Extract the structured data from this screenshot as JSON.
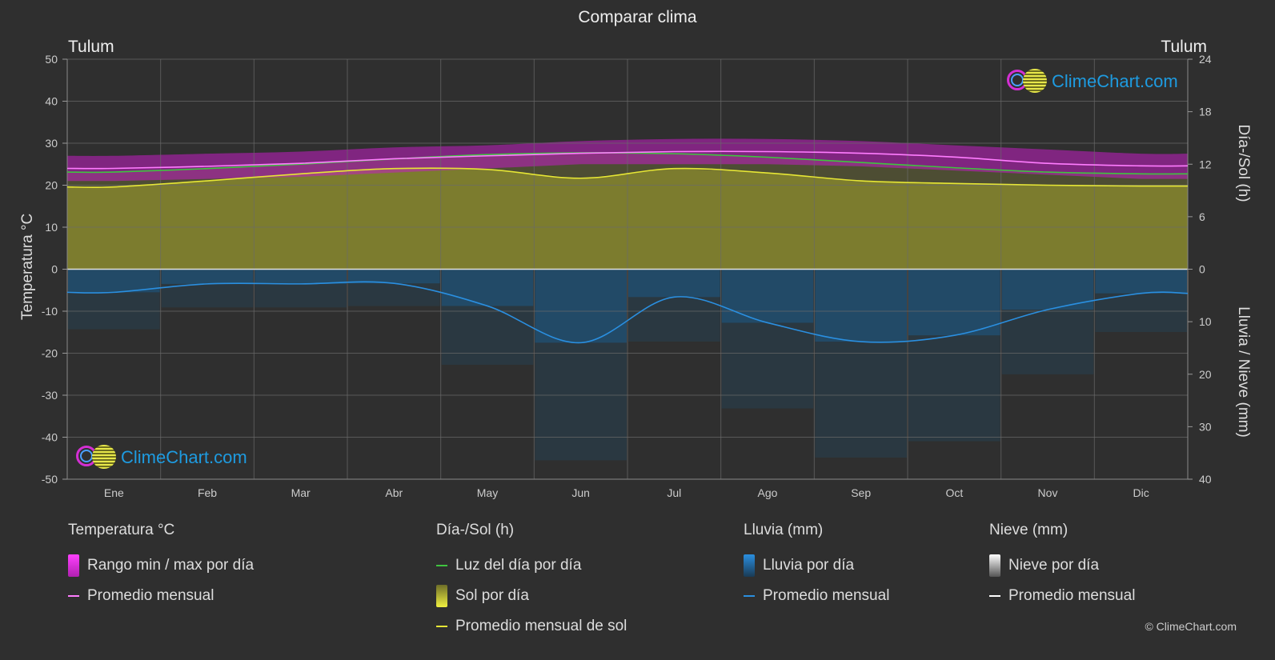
{
  "header": {
    "title": "Comparar clima",
    "location_left": "Tulum",
    "location_right": "Tulum"
  },
  "axes": {
    "left_title": "Temperatura °C",
    "right_top_title": "Día-/Sol (h)",
    "right_bottom_title": "Lluvia / Nieve (mm)"
  },
  "logo_text": "ClimeChart.com",
  "copyright": "© ClimeChart.com",
  "colors": {
    "background": "#2f2f2f",
    "temp_range": "#c21ec2",
    "temp_avg": "#ff7cff",
    "daylight": "#3fc43f",
    "sunshine_fill": "#8a8a2e",
    "sunshine_avg": "#e6e635",
    "rain_fill": "#1d5a86",
    "rain_avg": "#2a8fe0",
    "snow_avg": "#ffffff",
    "brand": "#1e9be0"
  },
  "legend": {
    "temperature": {
      "heading": "Temperatura °C",
      "range": "Rango min / max por día",
      "avg": "Promedio mensual"
    },
    "sun": {
      "heading": "Día-/Sol (h)",
      "daylight": "Luz del día por día",
      "sunshine": "Sol por día",
      "avg": "Promedio mensual de sol"
    },
    "rain": {
      "heading": "Lluvia (mm)",
      "daily": "Lluvia por día",
      "avg": "Promedio mensual"
    },
    "snow": {
      "heading": "Nieve (mm)",
      "daily": "Nieve por día",
      "avg": "Promedio mensual"
    }
  },
  "chart_data": {
    "type": "area",
    "title": "Comparar clima",
    "categories": [
      "Ene",
      "Feb",
      "Mar",
      "Abr",
      "May",
      "Jun",
      "Jul",
      "Ago",
      "Sep",
      "Oct",
      "Nov",
      "Dic"
    ],
    "y_left": {
      "label": "Temperatura °C",
      "range": [
        -50,
        50
      ],
      "ticks": [
        50,
        40,
        30,
        20,
        10,
        0,
        -10,
        -20,
        -30,
        -40,
        -50
      ]
    },
    "y_right_top": {
      "label": "Día-/Sol (h)",
      "range": [
        0,
        24
      ],
      "ticks": [
        24,
        18,
        12,
        6,
        0
      ]
    },
    "y_right_bottom": {
      "label": "Lluvia / Nieve (mm)",
      "range": [
        0,
        40
      ],
      "ticks": [
        0,
        10,
        20,
        30,
        40
      ]
    },
    "grid": true,
    "series": [
      {
        "name": "Rango min / max por día",
        "kind": "band",
        "axis": "temp",
        "low": [
          21,
          21.5,
          22,
          23,
          24,
          25,
          25,
          25,
          24.5,
          23.5,
          22.5,
          21.5
        ],
        "high": [
          27,
          27.5,
          28,
          29,
          29.5,
          30.5,
          31,
          31,
          30.5,
          29.5,
          28.5,
          27.5
        ]
      },
      {
        "name": "Promedio mensual",
        "kind": "line",
        "axis": "temp",
        "values": [
          24,
          24.5,
          25.2,
          26.3,
          27,
          27.6,
          28,
          28,
          27.6,
          26.7,
          25.2,
          24.6
        ]
      },
      {
        "name": "Luz del día por día",
        "kind": "line",
        "axis": "sun",
        "values": [
          11.1,
          11.5,
          12.0,
          12.6,
          13.1,
          13.3,
          13.2,
          12.8,
          12.2,
          11.6,
          11.1,
          10.9
        ]
      },
      {
        "name": "Sol por día",
        "kind": "area",
        "axis": "sun",
        "values": [
          9.4,
          10.1,
          10.9,
          11.5,
          11.4,
          10.4,
          11.5,
          11.0,
          10.1,
          9.8,
          9.6,
          9.5
        ]
      },
      {
        "name": "Promedio mensual de sol",
        "kind": "line",
        "axis": "sun",
        "values": [
          9.4,
          10.1,
          10.9,
          11.5,
          11.4,
          10.4,
          11.5,
          11.0,
          10.1,
          9.8,
          9.6,
          9.5
        ]
      },
      {
        "name": "Lluvia por día",
        "kind": "bars",
        "axis": "rain",
        "values": [
          4.4,
          2.8,
          2.8,
          2.7,
          7.0,
          14.0,
          5.3,
          10.2,
          13.8,
          12.6,
          7.7,
          4.6
        ]
      },
      {
        "name": "Promedio mensual",
        "kind": "line",
        "axis": "rain",
        "values": [
          4.4,
          2.8,
          2.8,
          2.7,
          7.0,
          14.0,
          5.3,
          10.2,
          13.8,
          12.6,
          7.7,
          4.6
        ]
      }
    ]
  }
}
